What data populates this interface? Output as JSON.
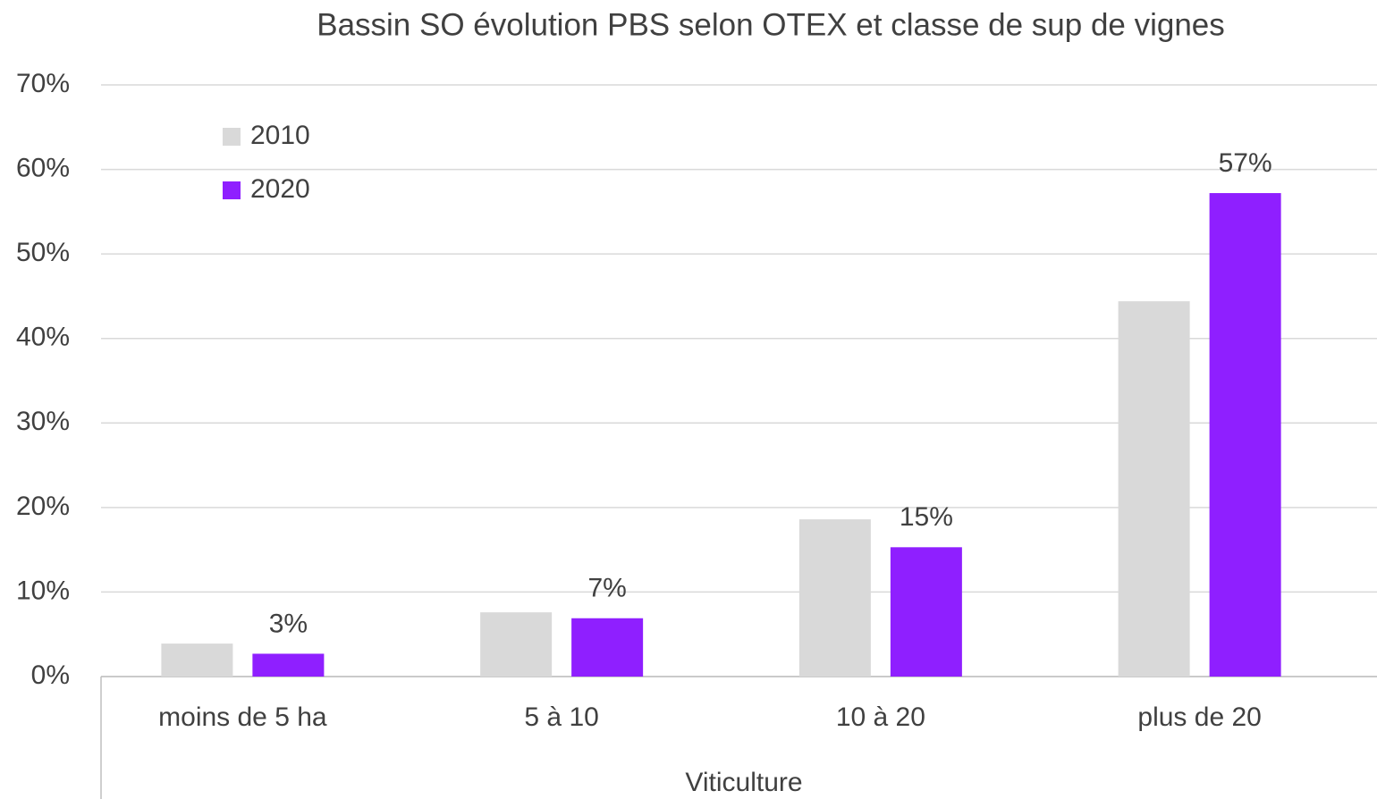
{
  "chart_data": {
    "type": "bar",
    "title": "Bassin SO  évolution PBS selon OTEX et classe de sup de vignes",
    "xlabel": "Viticulture",
    "categories": [
      "moins de 5 ha",
      "5 à 10",
      "10 à 20",
      "plus de 20"
    ],
    "series": [
      {
        "name": "2010",
        "color": "#d9d9d9",
        "values": [
          3.9,
          7.6,
          18.6,
          44.4
        ]
      },
      {
        "name": "2020",
        "color": "#8f1fff",
        "values": [
          2.7,
          6.9,
          15.3,
          57.2
        ],
        "value_labels": [
          "3%",
          "7%",
          "15%",
          "57%"
        ]
      }
    ],
    "ylim": [
      0,
      70
    ],
    "yticks": [
      {
        "value": 0,
        "label": "0%"
      },
      {
        "value": 10,
        "label": "10%"
      },
      {
        "value": 20,
        "label": "20%"
      },
      {
        "value": 30,
        "label": "30%"
      },
      {
        "value": 40,
        "label": "40%"
      },
      {
        "value": 50,
        "label": "50%"
      },
      {
        "value": 60,
        "label": "60%"
      },
      {
        "value": 70,
        "label": "70%"
      }
    ],
    "grid": true,
    "legend": "upper left"
  }
}
